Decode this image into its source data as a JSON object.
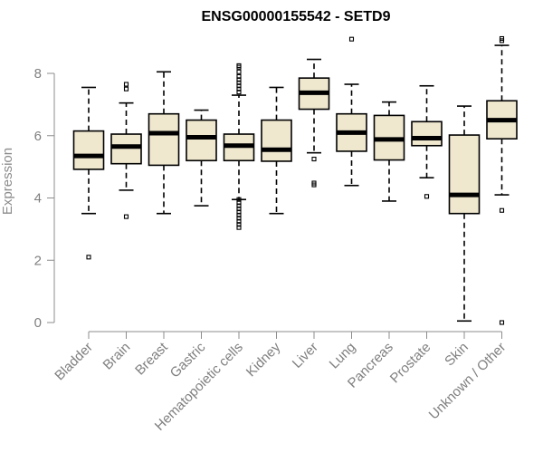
{
  "chart_data": {
    "type": "boxplot",
    "title": "ENSG00000155542 - SETD9",
    "xlabel": "",
    "ylabel": "Expression",
    "ylim": [
      0,
      9.2
    ],
    "yticks": [
      0,
      2,
      4,
      6,
      8
    ],
    "grid": false,
    "legend": "none",
    "box_fill": "#efe8cf",
    "box_stroke": "#000000",
    "categories": [
      "Bladder",
      "Brain",
      "Breast",
      "Gastric",
      "Hematopoietic cells",
      "Kidney",
      "Liver",
      "Lung",
      "Pancreas",
      "Prostate",
      "Skin",
      "Unknown / Other"
    ],
    "boxes": [
      {
        "whisker_low": 3.5,
        "q1": 4.92,
        "median": 5.35,
        "q3": 6.15,
        "whisker_high": 7.55,
        "outliers": [
          2.1
        ]
      },
      {
        "whisker_low": 4.25,
        "q1": 5.1,
        "median": 5.65,
        "q3": 6.05,
        "whisker_high": 7.05,
        "outliers": [
          3.4,
          7.5,
          7.65
        ]
      },
      {
        "whisker_low": 3.5,
        "q1": 5.05,
        "median": 6.08,
        "q3": 6.7,
        "whisker_high": 8.05,
        "outliers": []
      },
      {
        "whisker_low": 3.75,
        "q1": 5.2,
        "median": 5.95,
        "q3": 6.5,
        "whisker_high": 6.82,
        "outliers": []
      },
      {
        "whisker_low": 3.95,
        "q1": 5.2,
        "median": 5.68,
        "q3": 6.05,
        "whisker_high": 7.3,
        "outliers": [
          3.05,
          3.15,
          3.25,
          3.35,
          3.45,
          3.55,
          3.65,
          3.75,
          3.85,
          3.95,
          7.4,
          7.5,
          7.6,
          7.7,
          7.8,
          7.9,
          8.05,
          8.2,
          8.25
        ]
      },
      {
        "whisker_low": 3.5,
        "q1": 5.18,
        "median": 5.55,
        "q3": 6.5,
        "whisker_high": 7.55,
        "outliers": []
      },
      {
        "whisker_low": 5.45,
        "q1": 6.85,
        "median": 7.38,
        "q3": 7.85,
        "whisker_high": 8.45,
        "outliers": [
          4.42,
          4.48,
          5.25
        ]
      },
      {
        "whisker_low": 4.4,
        "q1": 5.5,
        "median": 6.1,
        "q3": 6.7,
        "whisker_high": 7.65,
        "outliers": [
          9.1
        ]
      },
      {
        "whisker_low": 3.9,
        "q1": 5.22,
        "median": 5.88,
        "q3": 6.65,
        "whisker_high": 7.08,
        "outliers": []
      },
      {
        "whisker_low": 4.65,
        "q1": 5.68,
        "median": 5.92,
        "q3": 6.45,
        "whisker_high": 7.6,
        "outliers": [
          4.05
        ]
      },
      {
        "whisker_low": 0.05,
        "q1": 3.5,
        "median": 4.1,
        "q3": 6.02,
        "whisker_high": 6.95,
        "outliers": []
      },
      {
        "whisker_low": 4.1,
        "q1": 5.9,
        "median": 6.5,
        "q3": 7.12,
        "whisker_high": 8.9,
        "outliers": [
          0.0,
          3.6,
          9.05,
          9.12
        ]
      }
    ]
  }
}
